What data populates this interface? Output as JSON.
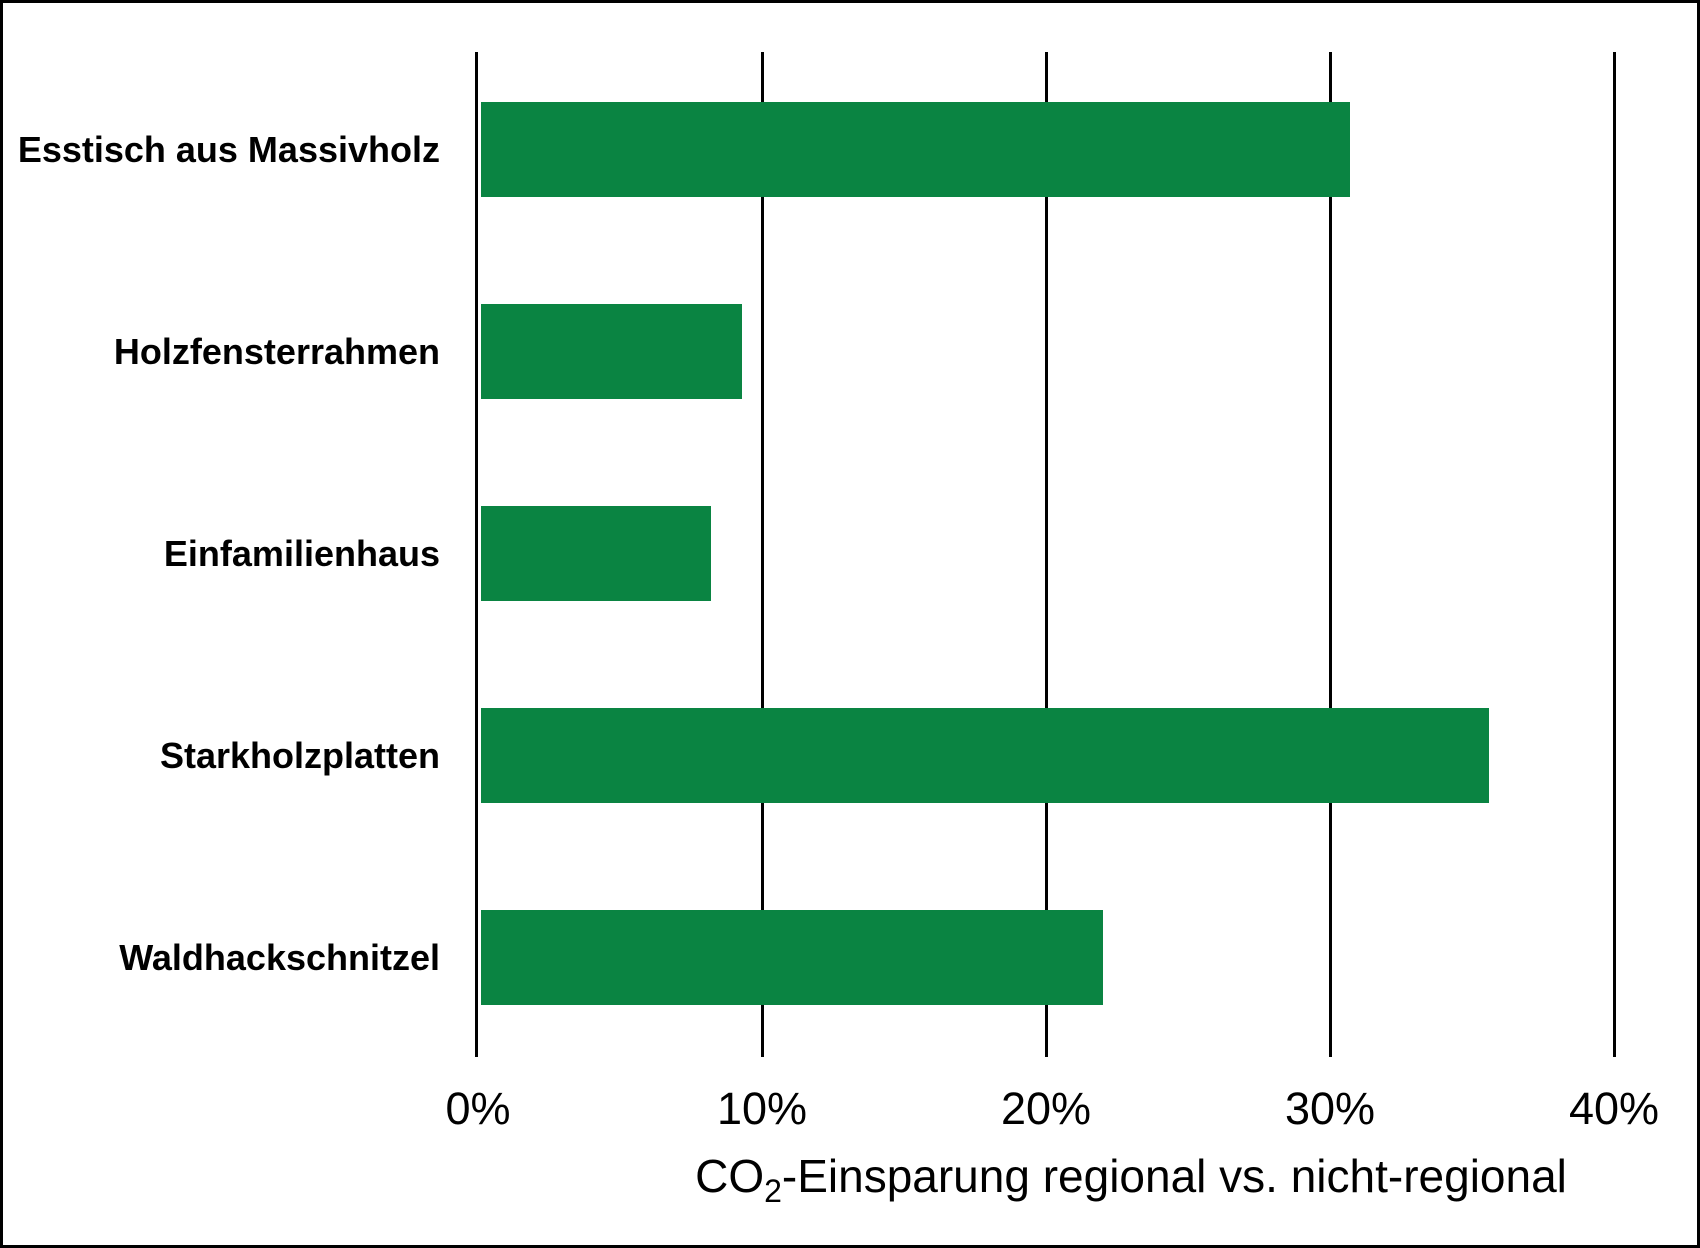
{
  "chart_data": {
    "type": "bar",
    "orientation": "horizontal",
    "categories": [
      "Esstisch aus Massivholz",
      "Holzfensterrahmen",
      "Einfamilienhaus",
      "Starkholzplatten",
      "Waldhackschnitzel"
    ],
    "values": [
      30.6,
      9.2,
      8.1,
      35.5,
      21.9
    ],
    "unit": "%",
    "xlabel_parts": {
      "prefix": "CO",
      "subscript": "2",
      "suffix": "-Einsparung regional vs. nicht-regional"
    },
    "x_ticks": [
      "0%",
      "10%",
      "20%",
      "30%",
      "40%"
    ],
    "x_tick_values": [
      0,
      10,
      20,
      30,
      40
    ],
    "xlim": [
      0,
      40
    ],
    "grid": "vertical",
    "legend": "none",
    "colors": {
      "bar": "#0A8442",
      "gridline": "#000000",
      "background": "#FFFFFF",
      "frame_border": "#000000",
      "text": "#000000"
    }
  }
}
